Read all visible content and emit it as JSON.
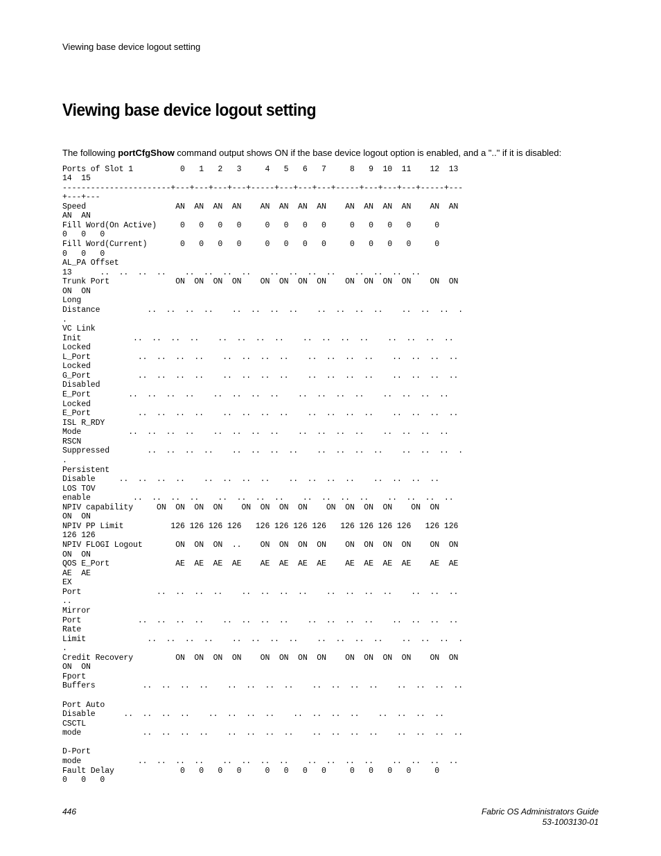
{
  "header": {
    "running_title": "Viewing base device logout setting"
  },
  "section": {
    "title": "Viewing base device logout setting",
    "intro_pre": "The following ",
    "intro_cmd": "portCfgShow",
    "intro_post": " command output shows ON if the base device logout option is enabled, and a \"..\" if it is disabled:"
  },
  "terminal": {
    "text": "Ports of Slot 1          0   1   2   3     4   5   6   7     8   9  10  11    12  13  \n14  15\n-----------------------+---+---+---+---+-----+---+---+---+-----+---+---+---+-----+---\n+---+---\nSpeed                   AN  AN  AN  AN    AN  AN  AN  AN    AN  AN  AN  AN    AN  AN  \nAN  AN\nFill Word(On Active)     0   0   0   0     0   0   0   0     0   0   0   0     0   \n0   0   0\nFill Word(Current)       0   0   0   0     0   0   0   0     0   0   0   0     0   \n0   0   0\nAL_PA Offset \n13      ..  ..  ..  ..    ..  ..  ..  ..    ..  ..  ..  ..    ..  ..  ..  ..\nTrunk Port              ON  ON  ON  ON    ON  ON  ON  ON    ON  ON  ON  ON    ON  ON  \nON  ON\nLong \nDistance          ..  ..  ..  ..    ..  ..  ..  ..    ..  ..  ..  ..    ..  ..  ..  .\n.\nVC Link \nInit           ..  ..  ..  ..    ..  ..  ..  ..    ..  ..  ..  ..    ..  ..  ..  ..\nLocked \nL_Port          ..  ..  ..  ..    ..  ..  ..  ..    ..  ..  ..  ..    ..  ..  ..  ..\nLocked \nG_Port          ..  ..  ..  ..    ..  ..  ..  ..    ..  ..  ..  ..    ..  ..  ..  ..\nDisabled \nE_Port        ..  ..  ..  ..    ..  ..  ..  ..    ..  ..  ..  ..    ..  ..  ..  ..\nLocked \nE_Port          ..  ..  ..  ..    ..  ..  ..  ..    ..  ..  ..  ..    ..  ..  ..  ..\nISL R_RDY \nMode          ..  ..  ..  ..    ..  ..  ..  ..    ..  ..  ..  ..    ..  ..  ..  ..\nRSCN \nSuppressed        ..  ..  ..  ..    ..  ..  ..  ..    ..  ..  ..  ..    ..  ..  ..  .\n.\nPersistent \nDisable     ..  ..  ..  ..    ..  ..  ..  ..    ..  ..  ..  ..    ..  ..  ..  ..\nLOS TOV \nenable         ..  ..  ..  ..    ..  ..  ..  ..    ..  ..  ..  ..    ..  ..  ..  ..\nNPIV capability     ON  ON  ON  ON    ON  ON  ON  ON    ON  ON  ON  ON    ON  ON  \nON  ON\nNPIV PP Limit          126 126 126 126   126 126 126 126   126 126 126 126   126 126 \n126 126\nNPIV FLOGI Logout       ON  ON  ON  ..    ON  ON  ON  ON    ON  ON  ON  ON    ON  ON  \nON  ON\nQOS E_Port              AE  AE  AE  AE    AE  AE  AE  AE    AE  AE  AE  AE    AE  AE  \nAE  AE\nEX \nPort                ..  ..  ..  ..    ..  ..  ..  ..    ..  ..  ..  ..    ..  ..  ..  \n..\nMirror \nPort            ..  ..  ..  ..    ..  ..  ..  ..    ..  ..  ..  ..    ..  ..  ..  ..\nRate \nLimit             ..  ..  ..  ..    ..  ..  ..  ..    ..  ..  ..  ..    ..  ..  ..  .\n.\nCredit Recovery         ON  ON  ON  ON    ON  ON  ON  ON    ON  ON  ON  ON    ON  ON  \nON  ON\nFport \nBuffers          ..  ..  ..  ..    ..  ..  ..  ..    ..  ..  ..  ..    ..  ..  ..  ..\n\nPort Auto \nDisable      ..  ..  ..  ..    ..  ..  ..  ..    ..  ..  ..  ..    ..  ..  ..  ..\nCSCTL \nmode             ..  ..  ..  ..    ..  ..  ..  ..    ..  ..  ..  ..    ..  ..  ..  ..\n\nD-Port \nmode            ..  ..  ..  ..    ..  ..  ..  ..    ..  ..  ..  ..    ..  ..  ..  ..\nFault Delay              0   0   0   0     0   0   0   0     0   0   0   0     0   \n0   0   0"
  },
  "footer": {
    "page_number": "446",
    "doc_title": "Fabric OS Administrators Guide",
    "doc_number": "53-1003130-01"
  }
}
